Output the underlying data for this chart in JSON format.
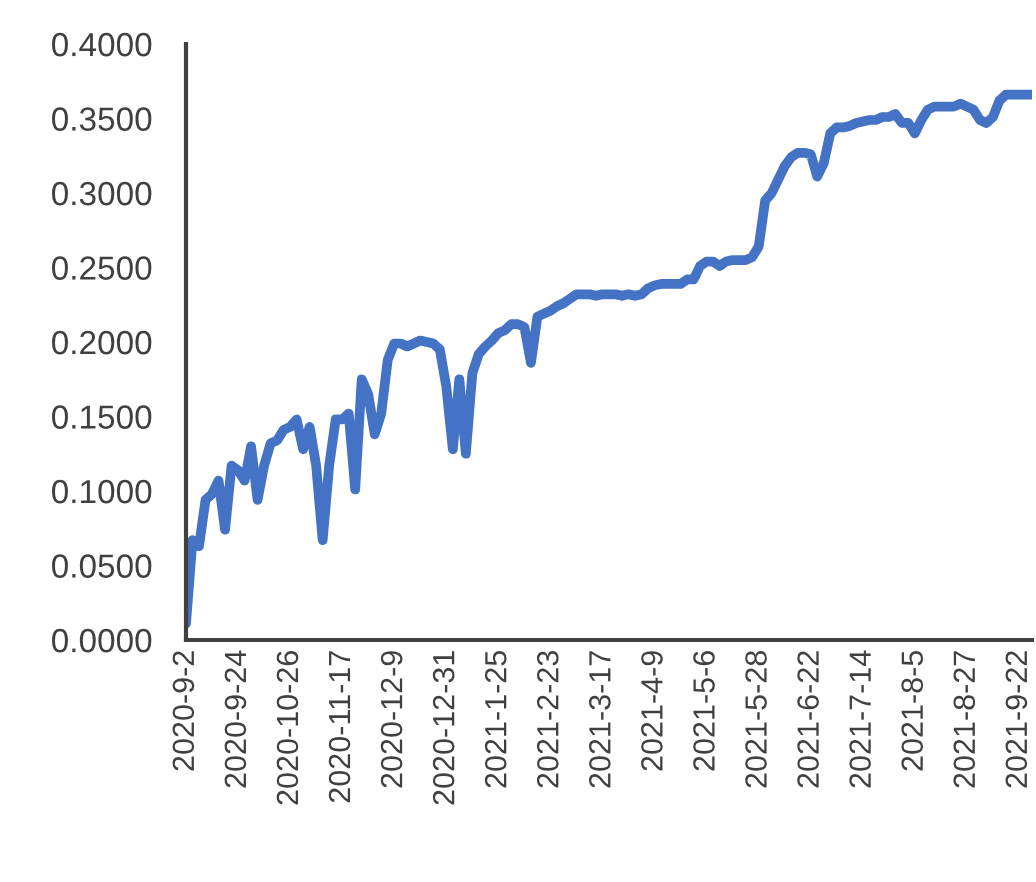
{
  "chart_data": {
    "type": "line",
    "categories": [
      "2020-9-2",
      null,
      null,
      null,
      null,
      null,
      null,
      null,
      "2020-9-24",
      null,
      null,
      null,
      null,
      null,
      null,
      null,
      "2020-10-26",
      null,
      null,
      null,
      null,
      null,
      null,
      null,
      "2020-11-17",
      null,
      null,
      null,
      null,
      null,
      null,
      null,
      "2020-12-9",
      null,
      null,
      null,
      null,
      null,
      null,
      null,
      "2020-12-31",
      null,
      null,
      null,
      null,
      null,
      null,
      null,
      "2021-1-25",
      null,
      null,
      null,
      null,
      null,
      null,
      null,
      "2021-2-23",
      null,
      null,
      null,
      null,
      null,
      null,
      null,
      "2021-3-17",
      null,
      null,
      null,
      null,
      null,
      null,
      null,
      "2021-4-9",
      null,
      null,
      null,
      null,
      null,
      null,
      null,
      "2021-5-6",
      null,
      null,
      null,
      null,
      null,
      null,
      null,
      "2021-5-28",
      null,
      null,
      null,
      null,
      null,
      null,
      null,
      "2021-6-22",
      null,
      null,
      null,
      null,
      null,
      null,
      null,
      "2021-7-14",
      null,
      null,
      null,
      null,
      null,
      null,
      null,
      "2021-8-5",
      null,
      null,
      null,
      null,
      null,
      null,
      null,
      "2021-8-27",
      null,
      null,
      null,
      null,
      null,
      null,
      null,
      "2021-9-22",
      null,
      null
    ],
    "series": [
      {
        "color": "#4472c4",
        "values": [
          0.011,
          0.067,
          0.063,
          0.094,
          0.098,
          0.107,
          0.074,
          0.117,
          0.114,
          0.107,
          0.13,
          0.094,
          0.117,
          0.132,
          0.134,
          0.141,
          0.143,
          0.148,
          0.128,
          0.143,
          0.117,
          0.067,
          0.117,
          0.148,
          0.148,
          0.152,
          0.101,
          0.175,
          0.165,
          0.138,
          0.152,
          0.188,
          0.199,
          0.199,
          0.197,
          0.199,
          0.201,
          0.2,
          0.199,
          0.195,
          0.17,
          0.128,
          0.175,
          0.125,
          0.179,
          0.192,
          0.197,
          0.201,
          0.206,
          0.208,
          0.212,
          0.212,
          0.21,
          0.186,
          0.217,
          0.219,
          0.221,
          0.224,
          0.226,
          0.229,
          0.232,
          0.232,
          0.232,
          0.231,
          0.232,
          0.232,
          0.232,
          0.231,
          0.232,
          0.231,
          0.232,
          0.236,
          0.238,
          0.239,
          0.239,
          0.239,
          0.239,
          0.242,
          0.242,
          0.251,
          0.254,
          0.254,
          0.251,
          0.254,
          0.255,
          0.255,
          0.255,
          0.257,
          0.264,
          0.295,
          0.3,
          0.309,
          0.318,
          0.324,
          0.327,
          0.327,
          0.326,
          0.311,
          0.32,
          0.34,
          0.344,
          0.344,
          0.345,
          0.347,
          0.348,
          0.349,
          0.349,
          0.351,
          0.351,
          0.353,
          0.347,
          0.347,
          0.34,
          0.349,
          0.356,
          0.358,
          0.358,
          0.358,
          0.358,
          0.36,
          0.358,
          0.356,
          0.349,
          0.347,
          0.351,
          0.362,
          0.366,
          0.366,
          0.366,
          0.366,
          0.366
        ]
      }
    ],
    "ylim": [
      0,
      0.4
    ],
    "yticks": [
      {
        "value": 0,
        "label": "0.0000"
      },
      {
        "value": 0.05,
        "label": "0.0500"
      },
      {
        "value": 0.1,
        "label": "0.1000"
      },
      {
        "value": 0.15,
        "label": "0.1500"
      },
      {
        "value": 0.2,
        "label": "0.2000"
      },
      {
        "value": 0.25,
        "label": "0.2500"
      },
      {
        "value": 0.3,
        "label": "0.3000"
      },
      {
        "value": 0.35,
        "label": "0.3500"
      },
      {
        "value": 0.4,
        "label": "0.4000"
      }
    ],
    "grid": false,
    "legend": false,
    "marker": "none",
    "line_style": "solid"
  }
}
